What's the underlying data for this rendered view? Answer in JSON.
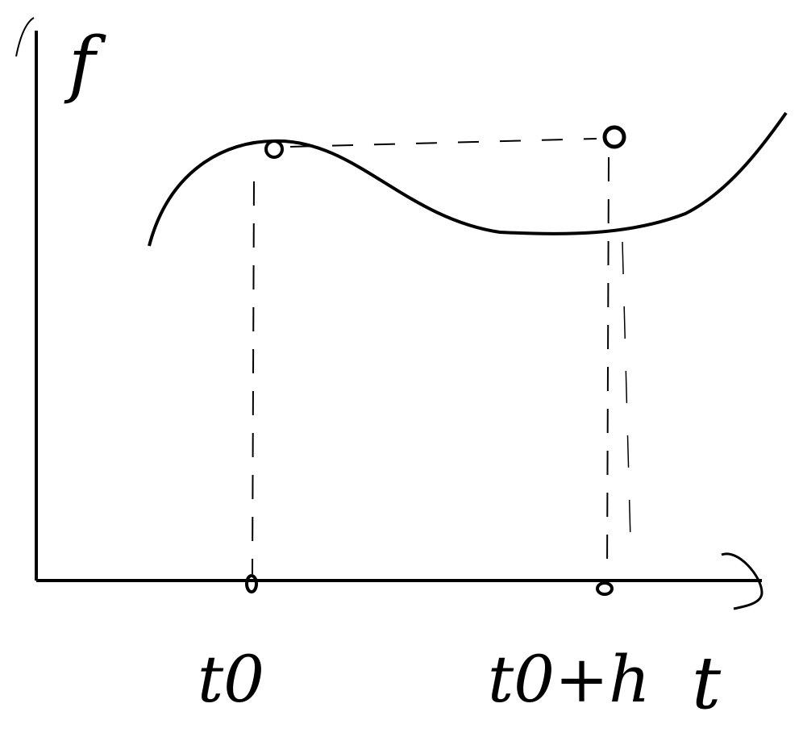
{
  "y_axis_label": "f",
  "x_axis_label": "t",
  "points": [
    {
      "label": "t0"
    },
    {
      "label": "t0+h"
    }
  ]
}
